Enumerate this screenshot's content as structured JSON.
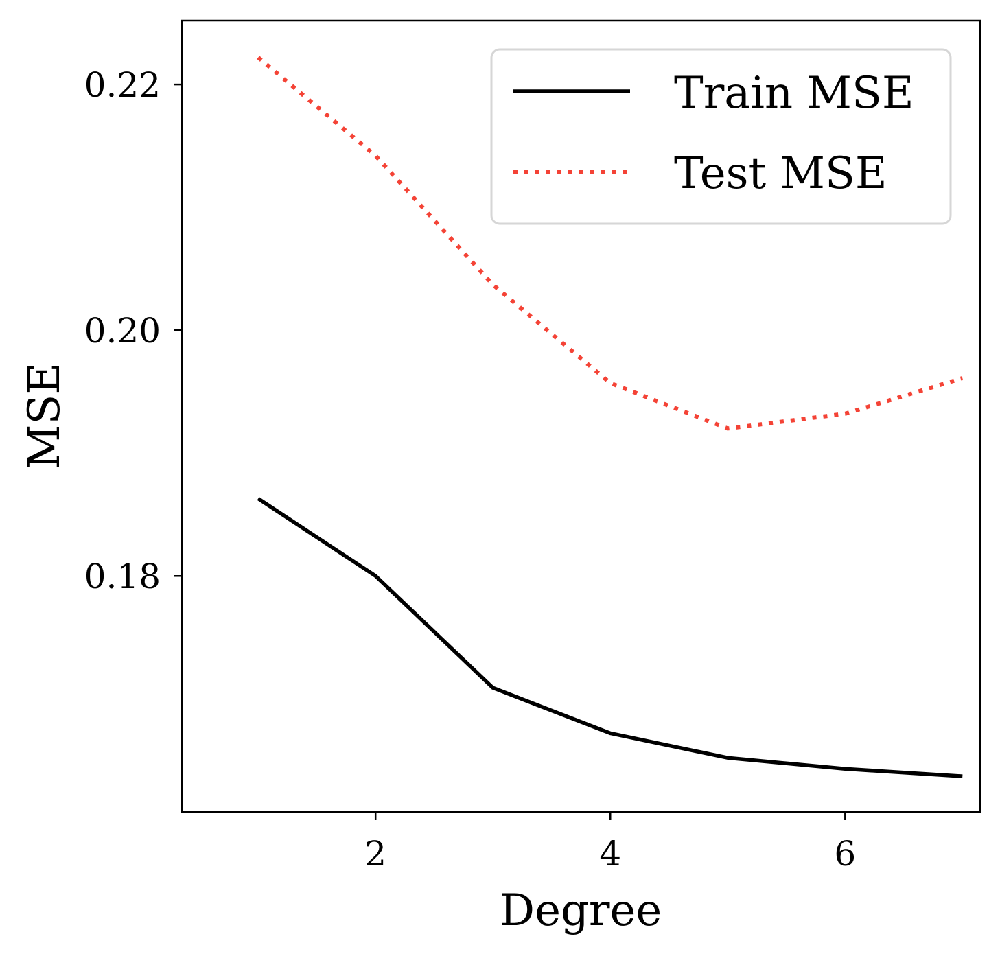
{
  "chart_data": {
    "type": "line",
    "title": "",
    "xlabel": "Degree",
    "ylabel": "MSE",
    "x": [
      1,
      2,
      3,
      4,
      5,
      6,
      7
    ],
    "xlim": [
      0.35,
      7.15
    ],
    "ylim": [
      0.1608,
      0.2252
    ],
    "xticks": [
      2,
      4,
      6
    ],
    "xtick_labels": [
      "2",
      "4",
      "6"
    ],
    "yticks": [
      0.18,
      0.2,
      0.22
    ],
    "ytick_labels": [
      "0.18",
      "0.20",
      "0.22"
    ],
    "grid": false,
    "legend": "top-right",
    "series": [
      {
        "name": "Train MSE",
        "values": [
          0.1863,
          0.18,
          0.1709,
          0.1672,
          0.1652,
          0.1643,
          0.1637
        ],
        "color": "#000000",
        "style": "solid"
      },
      {
        "name": "Test MSE",
        "values": [
          0.2222,
          0.2142,
          0.2037,
          0.1957,
          0.192,
          0.1932,
          0.1961
        ],
        "color": "#f44336",
        "style": "dotted"
      }
    ]
  }
}
